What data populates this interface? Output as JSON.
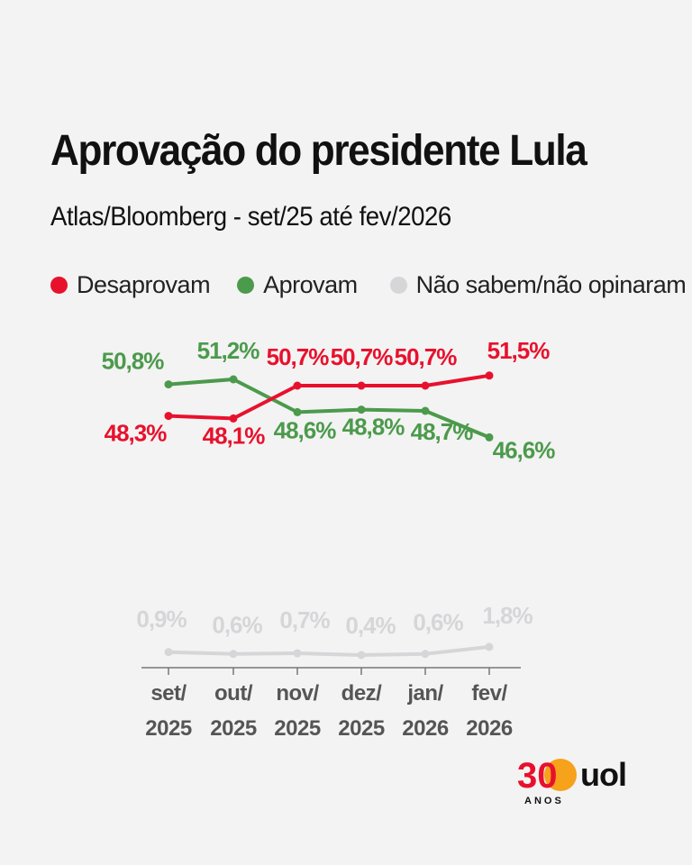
{
  "title": "Aprovação do presidente Lula",
  "subtitle": "Atlas/Bloomberg - set/25 até fev/2026",
  "legend": [
    {
      "label": "Desaprovam",
      "color": "#e8112d"
    },
    {
      "label": "Aprovam",
      "color": "#4c9a4c"
    },
    {
      "label": "Não sabem/não opinaram",
      "color": "#d6d6d9"
    }
  ],
  "chart_data": {
    "type": "line",
    "title": "Aprovação do presidente Lula",
    "subtitle": "Atlas/Bloomberg - set/25 até fev/2026",
    "categories": [
      {
        "month": "set/",
        "year": "2025"
      },
      {
        "month": "out/",
        "year": "2025"
      },
      {
        "month": "nov/",
        "year": "2025"
      },
      {
        "month": "dez/",
        "year": "2025"
      },
      {
        "month": "jan/",
        "year": "2026"
      },
      {
        "month": "fev/",
        "year": "2026"
      }
    ],
    "xlabel": "",
    "ylabel": "",
    "unit": "%",
    "grid": false,
    "series": [
      {
        "name": "Desaprovam",
        "color": "#e8112d",
        "values": [
          48.3,
          48.1,
          50.7,
          50.7,
          50.7,
          51.5
        ],
        "labels": [
          "48,3%",
          "48,1%",
          "50,7%",
          "50,7%",
          "50,7%",
          "51,5%"
        ]
      },
      {
        "name": "Aprovam",
        "color": "#4c9a4c",
        "values": [
          50.8,
          51.2,
          48.6,
          48.8,
          48.7,
          46.6
        ],
        "labels": [
          "50,8%",
          "51,2%",
          "48,6%",
          "48,8%",
          "48,7%",
          "46,6%"
        ]
      },
      {
        "name": "Não sabem/não opinaram",
        "color": "#d6d6d9",
        "values": [
          0.9,
          0.6,
          0.7,
          0.4,
          0.6,
          1.8
        ],
        "labels": [
          "0,9%",
          "0,6%",
          "0,7%",
          "0,4%",
          "0,6%",
          "1,8%"
        ]
      }
    ]
  },
  "logo": {
    "number": "30",
    "sub": "ANOS",
    "brand": "uol"
  },
  "colors": {
    "axis": "#777777",
    "tick_text": "#555555",
    "logo_orange": "#f7a21b",
    "logo_red": "#e8112d"
  }
}
